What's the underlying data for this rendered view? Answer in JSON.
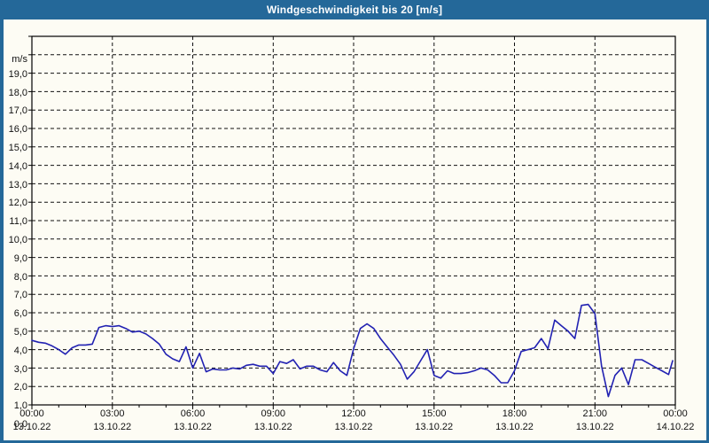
{
  "window": {
    "title": "Windgeschwindigkeit bis 20 [m/s]"
  },
  "colors": {
    "titlebar_bg": "#246899",
    "frame_border": "#246899",
    "background": "#fdfcf4",
    "series_line": "#2222b2",
    "grid": "#111111",
    "text": "#111111",
    "title_text": "#ffffff"
  },
  "y_axis": {
    "unit": "m/s",
    "min": 0,
    "max": 20,
    "tick_step": 1,
    "tick_labels": [
      "19,0",
      "18,0",
      "17,0",
      "16,0",
      "15,0",
      "14,0",
      "13,0",
      "12,0",
      "11,0",
      "10,0",
      "9,0",
      "8,0",
      "7,0",
      "6,0",
      "5,0",
      "4,0",
      "3,0",
      "2,0",
      "1,0",
      "0,0"
    ]
  },
  "x_axis": {
    "range_hours": [
      0,
      24
    ],
    "minor_tick_every_hours": 1,
    "major_tick_every_hours": 3,
    "ticks": [
      {
        "hour": 0,
        "time": "00:00",
        "date": "13.10.22"
      },
      {
        "hour": 3,
        "time": "03:00",
        "date": "13.10.22"
      },
      {
        "hour": 6,
        "time": "06:00",
        "date": "13.10.22"
      },
      {
        "hour": 9,
        "time": "09:00",
        "date": "13.10.22"
      },
      {
        "hour": 12,
        "time": "12:00",
        "date": "13.10.22"
      },
      {
        "hour": 15,
        "time": "15:00",
        "date": "13.10.22"
      },
      {
        "hour": 18,
        "time": "18:00",
        "date": "13.10.22"
      },
      {
        "hour": 21,
        "time": "21:00",
        "date": "13.10.22"
      },
      {
        "hour": 24,
        "time": "00:00",
        "date": "14.10.22"
      }
    ]
  },
  "chart_data": {
    "type": "line",
    "title": "Windgeschwindigkeit bis 20 [m/s]",
    "series_name": "Windgeschwindigkeit",
    "ylabel": "m/s",
    "ylim": [
      0,
      20
    ],
    "xlim_hours": [
      0,
      24
    ],
    "grid": "dashed, horizontal every 1 m/s, vertical every 3 h",
    "legend_position": "none",
    "x_hours": [
      0,
      0.25,
      0.5,
      0.75,
      1,
      1.25,
      1.5,
      1.75,
      2,
      2.25,
      2.5,
      2.75,
      3,
      3.25,
      3.5,
      3.75,
      4,
      4.25,
      4.5,
      4.75,
      5,
      5.25,
      5.5,
      5.75,
      6,
      6.25,
      6.5,
      6.75,
      7,
      7.25,
      7.5,
      7.75,
      8,
      8.25,
      8.5,
      8.75,
      9,
      9.25,
      9.5,
      9.75,
      10,
      10.25,
      10.5,
      10.75,
      11,
      11.25,
      11.5,
      11.75,
      12,
      12.25,
      12.5,
      12.75,
      13,
      13.25,
      13.5,
      13.75,
      14,
      14.25,
      14.5,
      14.75,
      15,
      15.25,
      15.5,
      15.75,
      16,
      16.25,
      16.5,
      16.75,
      17,
      17.25,
      17.5,
      17.75,
      18,
      18.25,
      18.5,
      18.75,
      19,
      19.25,
      19.5,
      19.75,
      20,
      20.25,
      20.5,
      20.75,
      21,
      21.25,
      21.5,
      21.75,
      22,
      22.25,
      22.5,
      22.75,
      23,
      23.25,
      23.5,
      23.75,
      23.9
    ],
    "values": [
      3.5,
      3.4,
      3.35,
      3.2,
      3.0,
      2.75,
      3.1,
      3.25,
      3.25,
      3.3,
      4.2,
      4.3,
      4.25,
      4.3,
      4.15,
      3.95,
      4.0,
      3.85,
      3.6,
      3.3,
      2.75,
      2.5,
      2.35,
      3.15,
      2.0,
      2.8,
      1.8,
      1.95,
      1.9,
      1.9,
      2.0,
      1.95,
      2.15,
      2.2,
      2.1,
      2.1,
      1.7,
      2.35,
      2.25,
      2.45,
      1.95,
      2.1,
      2.1,
      1.9,
      1.8,
      2.3,
      1.85,
      1.6,
      3.05,
      4.15,
      4.4,
      4.15,
      3.6,
      3.15,
      2.7,
      2.2,
      1.4,
      1.8,
      2.4,
      3.0,
      1.6,
      1.45,
      1.85,
      1.7,
      1.7,
      1.75,
      1.85,
      2.0,
      1.9,
      1.6,
      1.2,
      1.2,
      1.85,
      2.9,
      3.0,
      3.1,
      3.6,
      3.05,
      4.6,
      4.3,
      4.0,
      3.6,
      5.4,
      5.45,
      4.95,
      2.1,
      0.45,
      1.6,
      2.0,
      1.1,
      2.45,
      2.45,
      2.25,
      2.05,
      1.85,
      1.65,
      2.4
    ]
  }
}
